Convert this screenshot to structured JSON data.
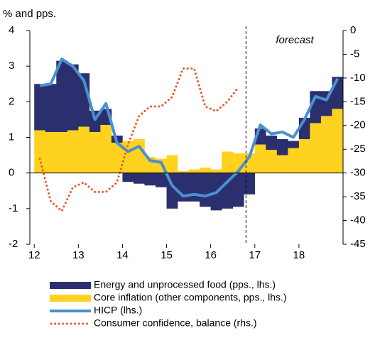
{
  "chart_data": {
    "type": "bar",
    "y_label": "% and pps.",
    "annotation": "forecast",
    "forecast_x": 16.8,
    "x": [
      12.125,
      12.375,
      12.625,
      12.875,
      13.125,
      13.375,
      13.625,
      13.875,
      14.125,
      14.375,
      14.625,
      14.875,
      15.125,
      15.375,
      15.625,
      15.875,
      16.125,
      16.375,
      16.625,
      16.875,
      17.125,
      17.375,
      17.625,
      17.875,
      18.125,
      18.375,
      18.625,
      18.875
    ],
    "xlim": [
      11.9,
      19.0
    ],
    "xticks": [
      12,
      13,
      14,
      15,
      16,
      17,
      18
    ],
    "ylim": [
      -2,
      4
    ],
    "yticks": [
      -2,
      -1,
      0,
      1,
      2,
      3,
      4
    ],
    "y2lim": [
      -45,
      0
    ],
    "y2ticks": [
      -45,
      -40,
      -35,
      -30,
      -25,
      -20,
      -15,
      -10,
      -5,
      0
    ],
    "series": [
      {
        "name": "Energy and unprocessed food (pps., lhs.)",
        "type": "bar",
        "color": "#2b2f6e",
        "values": [
          1.3,
          1.35,
          2.0,
          1.85,
          1.5,
          0.6,
          0.45,
          0.2,
          -0.25,
          -0.3,
          -0.35,
          -0.4,
          -1.0,
          -0.8,
          -0.8,
          -0.95,
          -1.05,
          -1.0,
          -0.95,
          -0.6,
          0.45,
          0.4,
          0.45,
          0.2,
          0.6,
          0.9,
          0.7,
          0.9
        ]
      },
      {
        "name": "Core inflation (other components, pps., lhs.)",
        "type": "bar",
        "color": "#ffd21f",
        "values": [
          1.2,
          1.15,
          1.15,
          1.2,
          1.3,
          1.15,
          1.35,
          0.85,
          0.9,
          0.95,
          0.45,
          0.4,
          0.5,
          0.05,
          0.1,
          0.15,
          0.1,
          0.6,
          0.55,
          0.55,
          0.8,
          0.65,
          0.5,
          0.7,
          0.95,
          1.4,
          1.6,
          1.8
        ]
      },
      {
        "name": "HICP (lhs.)",
        "type": "line",
        "color": "#4a90d0",
        "values": [
          2.45,
          2.5,
          3.2,
          3.0,
          2.6,
          1.5,
          1.95,
          0.85,
          0.6,
          0.75,
          0.35,
          0.3,
          -0.35,
          -0.65,
          -0.6,
          -0.65,
          -0.55,
          -0.25,
          0.05,
          0.45,
          1.35,
          1.1,
          1.15,
          1.0,
          1.5,
          2.15,
          2.05,
          2.65
        ]
      },
      {
        "name": "Consumer confidence, balance (rhs.)",
        "type": "dotted",
        "color": "#e8582a",
        "axis": "y2",
        "values": [
          -27,
          -36,
          -38,
          -33,
          -32,
          -34,
          -34,
          -32,
          -24,
          -18,
          -16,
          -16,
          -14,
          -8,
          -8,
          -16,
          -17,
          -15,
          -12,
          null,
          null,
          null,
          null,
          null,
          null,
          null,
          null,
          null
        ]
      }
    ]
  }
}
